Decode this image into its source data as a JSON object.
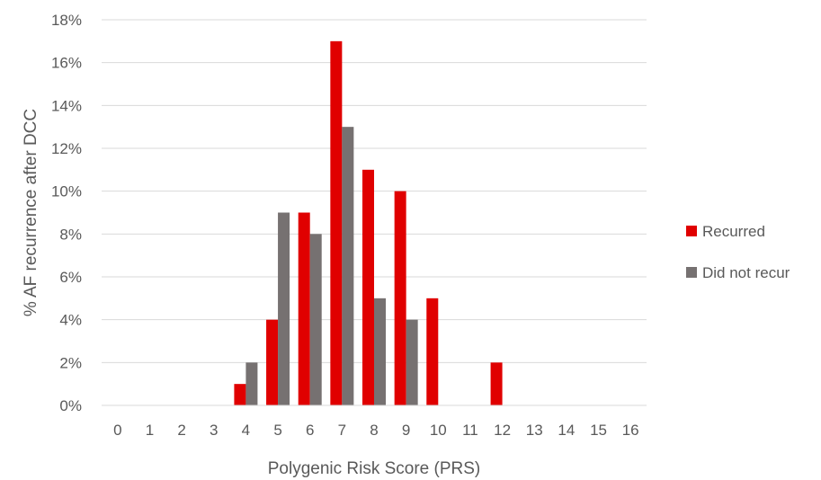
{
  "chart_data": {
    "type": "bar",
    "title": "",
    "xlabel": "Polygenic Risk Score (PRS)",
    "ylabel": "% AF recurrence after DCC",
    "categories": [
      "0",
      "1",
      "2",
      "3",
      "4",
      "5",
      "6",
      "7",
      "8",
      "9",
      "10",
      "11",
      "12",
      "13",
      "14",
      "15",
      "16"
    ],
    "series": [
      {
        "name": "Recurred",
        "color": "#e00000",
        "values": [
          0,
          0,
          0,
          0,
          1,
          4,
          9,
          17,
          11,
          10,
          5,
          0,
          2,
          0,
          0,
          0,
          0
        ]
      },
      {
        "name": "Did not recur",
        "color": "#767171",
        "values": [
          0,
          0,
          0,
          0,
          2,
          9,
          8,
          13,
          5,
          4,
          0,
          0,
          0,
          0,
          0,
          0,
          0
        ]
      }
    ],
    "ylim": [
      0,
      18
    ],
    "yticks": [
      0,
      2,
      4,
      6,
      8,
      10,
      12,
      14,
      16,
      18
    ],
    "ytick_suffix": "%",
    "grid": true,
    "legend_position": "right"
  }
}
